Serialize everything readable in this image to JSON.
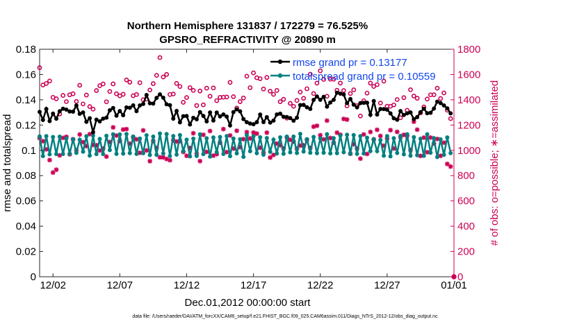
{
  "chart_data": {
    "type": "line",
    "title_line1": "Northern Hemisphere 131837 / 172279 = 76.525%",
    "title_line2": "GPSRO_REFRACTIVITY @ 20890 m",
    "xlabel": "Dec.01,2012 00:00:00 start",
    "ylabel_left": "rmse and totalspread",
    "ylabel_right": "# of obs: o=possible; ∗=assimilated",
    "xlim": [
      0,
      31
    ],
    "ylim_left": [
      0,
      0.18
    ],
    "ylim_right": [
      0,
      1800
    ],
    "x_ticks": [
      {
        "x": 1,
        "label": "12/02"
      },
      {
        "x": 6,
        "label": "12/07"
      },
      {
        "x": 11,
        "label": "12/12"
      },
      {
        "x": 16,
        "label": "12/17"
      },
      {
        "x": 21,
        "label": "12/22"
      },
      {
        "x": 26,
        "label": "12/27"
      },
      {
        "x": 31,
        "label": "01/01"
      }
    ],
    "y_ticks_left": [
      {
        "v": 0,
        "label": "0"
      },
      {
        "v": 0.02,
        "label": "0.02"
      },
      {
        "v": 0.04,
        "label": "0.04"
      },
      {
        "v": 0.06,
        "label": "0.06"
      },
      {
        "v": 0.08,
        "label": "0.08"
      },
      {
        "v": 0.1,
        "label": "0.1"
      },
      {
        "v": 0.12,
        "label": "0.12"
      },
      {
        "v": 0.14,
        "label": "0.14"
      },
      {
        "v": 0.16,
        "label": "0.16"
      },
      {
        "v": 0.18,
        "label": "0.18"
      }
    ],
    "y_ticks_right": [
      {
        "v": 0,
        "label": "0"
      },
      {
        "v": 200,
        "label": "200"
      },
      {
        "v": 400,
        "label": "400"
      },
      {
        "v": 600,
        "label": "600"
      },
      {
        "v": 800,
        "label": "800"
      },
      {
        "v": 1000,
        "label": "1000"
      },
      {
        "v": 1200,
        "label": "1200"
      },
      {
        "v": 1400,
        "label": "1400"
      },
      {
        "v": 1600,
        "label": "1600"
      },
      {
        "v": 1800,
        "label": "1800"
      }
    ],
    "legend": [
      {
        "name": "rmse grand pr = 0.13177",
        "color": "#000000"
      },
      {
        "name": "totalspread grand pr = 0.10559",
        "color": "#008080"
      }
    ],
    "rmse_anchors": [
      [
        0,
        0.13
      ],
      [
        1,
        0.128
      ],
      [
        2,
        0.137
      ],
      [
        3,
        0.128
      ],
      [
        4,
        0.119
      ],
      [
        5,
        0.128
      ],
      [
        6,
        0.13
      ],
      [
        7,
        0.135
      ],
      [
        8,
        0.14
      ],
      [
        9,
        0.141
      ],
      [
        10,
        0.129
      ],
      [
        11,
        0.124
      ],
      [
        12,
        0.126
      ],
      [
        13,
        0.126
      ],
      [
        14,
        0.124
      ],
      [
        15,
        0.128
      ],
      [
        16,
        0.124
      ],
      [
        17,
        0.124
      ],
      [
        18,
        0.128
      ],
      [
        19,
        0.126
      ],
      [
        20,
        0.136
      ],
      [
        21,
        0.14
      ],
      [
        22,
        0.14
      ],
      [
        23,
        0.141
      ],
      [
        24,
        0.132
      ],
      [
        25,
        0.134
      ],
      [
        26,
        0.128
      ],
      [
        27,
        0.126
      ],
      [
        28,
        0.128
      ],
      [
        29,
        0.128
      ],
      [
        29.6,
        0.135
      ],
      [
        30,
        0.133
      ],
      [
        30.5,
        0.133
      ]
    ],
    "spread_base": 0.104,
    "spread_amplitude": 0.0085,
    "possible_obs_anchors": [
      [
        0,
        1620
      ],
      [
        1,
        1380
      ],
      [
        2,
        1340
      ],
      [
        3,
        1450
      ],
      [
        4,
        1390
      ],
      [
        5,
        1470
      ],
      [
        6,
        1480
      ],
      [
        7,
        1450
      ],
      [
        8,
        1480
      ],
      [
        9,
        1630
      ],
      [
        10,
        1460
      ],
      [
        11,
        1410
      ],
      [
        12,
        1450
      ],
      [
        13,
        1450
      ],
      [
        14,
        1440
      ],
      [
        15,
        1440
      ],
      [
        16,
        1660
      ],
      [
        17,
        1510
      ],
      [
        18,
        1360
      ],
      [
        19,
        1360
      ],
      [
        20,
        1490
      ],
      [
        21,
        1540
      ],
      [
        22,
        1530
      ],
      [
        23,
        1400
      ],
      [
        24,
        1340
      ],
      [
        25,
        1490
      ],
      [
        26,
        1440
      ],
      [
        27,
        1300
      ],
      [
        28,
        1450
      ],
      [
        29,
        1360
      ],
      [
        30,
        1390
      ],
      [
        30.5,
        1360
      ]
    ],
    "possible_obs_spread": 110,
    "assimilated_obs_anchors": [
      [
        0,
        1160
      ],
      [
        1,
        780
      ],
      [
        2,
        1060
      ],
      [
        3,
        1080
      ],
      [
        4,
        1080
      ],
      [
        5,
        1050
      ],
      [
        6,
        1070
      ],
      [
        7,
        1110
      ],
      [
        8,
        1040
      ],
      [
        9,
        1050
      ],
      [
        10,
        1010
      ],
      [
        11,
        1030
      ],
      [
        12,
        1020
      ],
      [
        13,
        1030
      ],
      [
        14,
        1050
      ],
      [
        15,
        1080
      ],
      [
        16,
        1090
      ],
      [
        17,
        1070
      ],
      [
        18,
        1050
      ],
      [
        19,
        1050
      ],
      [
        20,
        1060
      ],
      [
        21,
        1090
      ],
      [
        22,
        1180
      ],
      [
        23,
        1120
      ],
      [
        24,
        1020
      ],
      [
        25,
        1030
      ],
      [
        26,
        1050
      ],
      [
        27,
        1080
      ],
      [
        28,
        1120
      ],
      [
        29,
        1040
      ],
      [
        30,
        950
      ],
      [
        30.5,
        970
      ]
    ],
    "assimilated_obs_spread": 130,
    "end_point": {
      "x": 31,
      "v": 0
    },
    "series_colors": {
      "rmse": "#000000",
      "spread": "#008080",
      "obs": "#cc0055"
    }
  },
  "footer": "data file: /Users/raeder/DAI/ATM_forcXX/CAM6_setup/f.e21.FHIST_BGC.f09_025.CAM6assim.011/Diags_NTrS_2012-12/obs_diag_output.nc"
}
